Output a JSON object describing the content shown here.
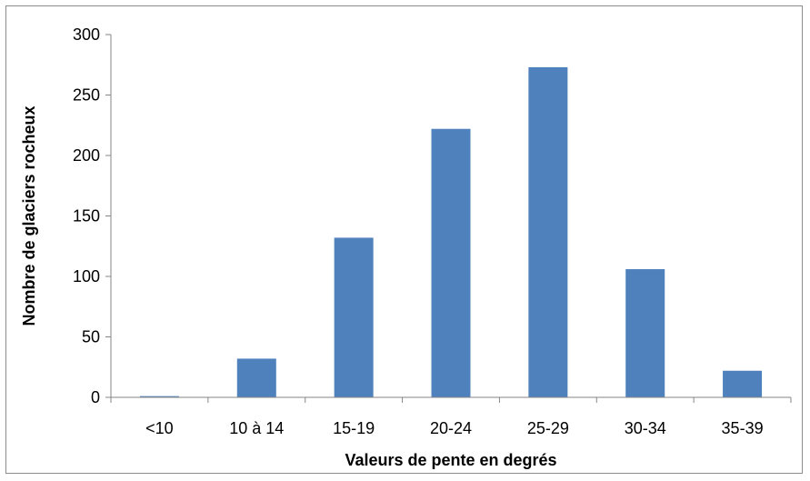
{
  "chart_data": {
    "type": "bar",
    "title": "",
    "xlabel": "Valeurs de pente en degrés",
    "ylabel": "Nombre de glaciers rocheux",
    "categories": [
      "<10",
      "10 à 14",
      "15-19",
      "20-24",
      "25-29",
      "30-34",
      "35-39"
    ],
    "values": [
      1,
      32,
      132,
      222,
      273,
      106,
      22
    ],
    "ylim": [
      0,
      300
    ],
    "yticks": [
      0,
      50,
      100,
      150,
      200,
      250,
      300
    ],
    "grid": false,
    "legend": "none",
    "bar_color": "#4f81bd",
    "axis_color": "#868686"
  }
}
